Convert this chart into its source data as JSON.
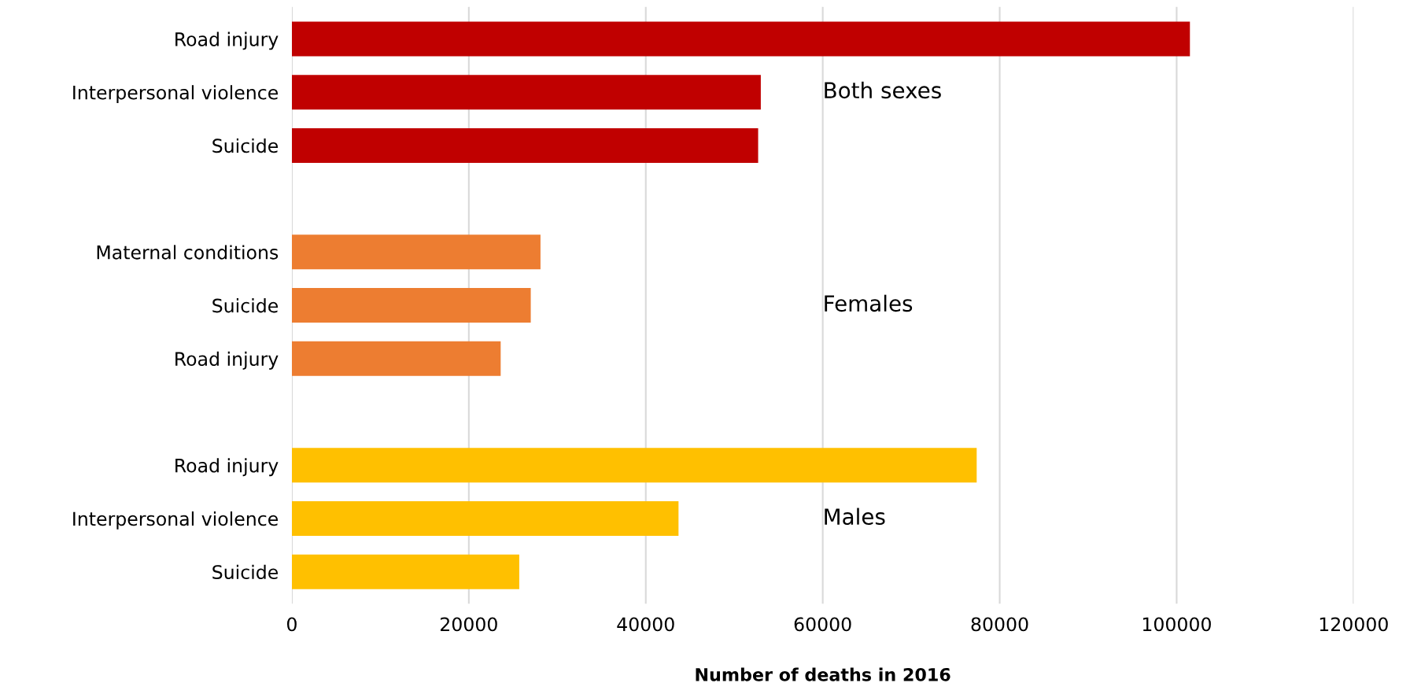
{
  "chart_data": {
    "type": "bar",
    "orientation": "horizontal",
    "categories": [
      "Road injury",
      "Interpersonal violence",
      "Suicide",
      null,
      "Maternal conditions",
      "Suicide",
      "Road injury",
      null,
      "Road injury",
      "Interpersonal violence",
      "Suicide"
    ],
    "values": [
      101500,
      53000,
      52700,
      null,
      28100,
      27000,
      23600,
      null,
      77400,
      43700,
      25700
    ],
    "colors": [
      "#c00000",
      "#c00000",
      "#c00000",
      null,
      "#ed7d31",
      "#ed7d31",
      "#ed7d31",
      null,
      "#ffc000",
      "#ffc000",
      "#ffc000"
    ],
    "xlabel": "Number of deaths in 2016",
    "xlim": [
      0,
      120000
    ],
    "xticks": [
      0,
      20000,
      40000,
      60000,
      80000,
      100000,
      120000
    ],
    "grid": "x",
    "annotations": [
      "Both sexes",
      "Females",
      "Males"
    ]
  }
}
